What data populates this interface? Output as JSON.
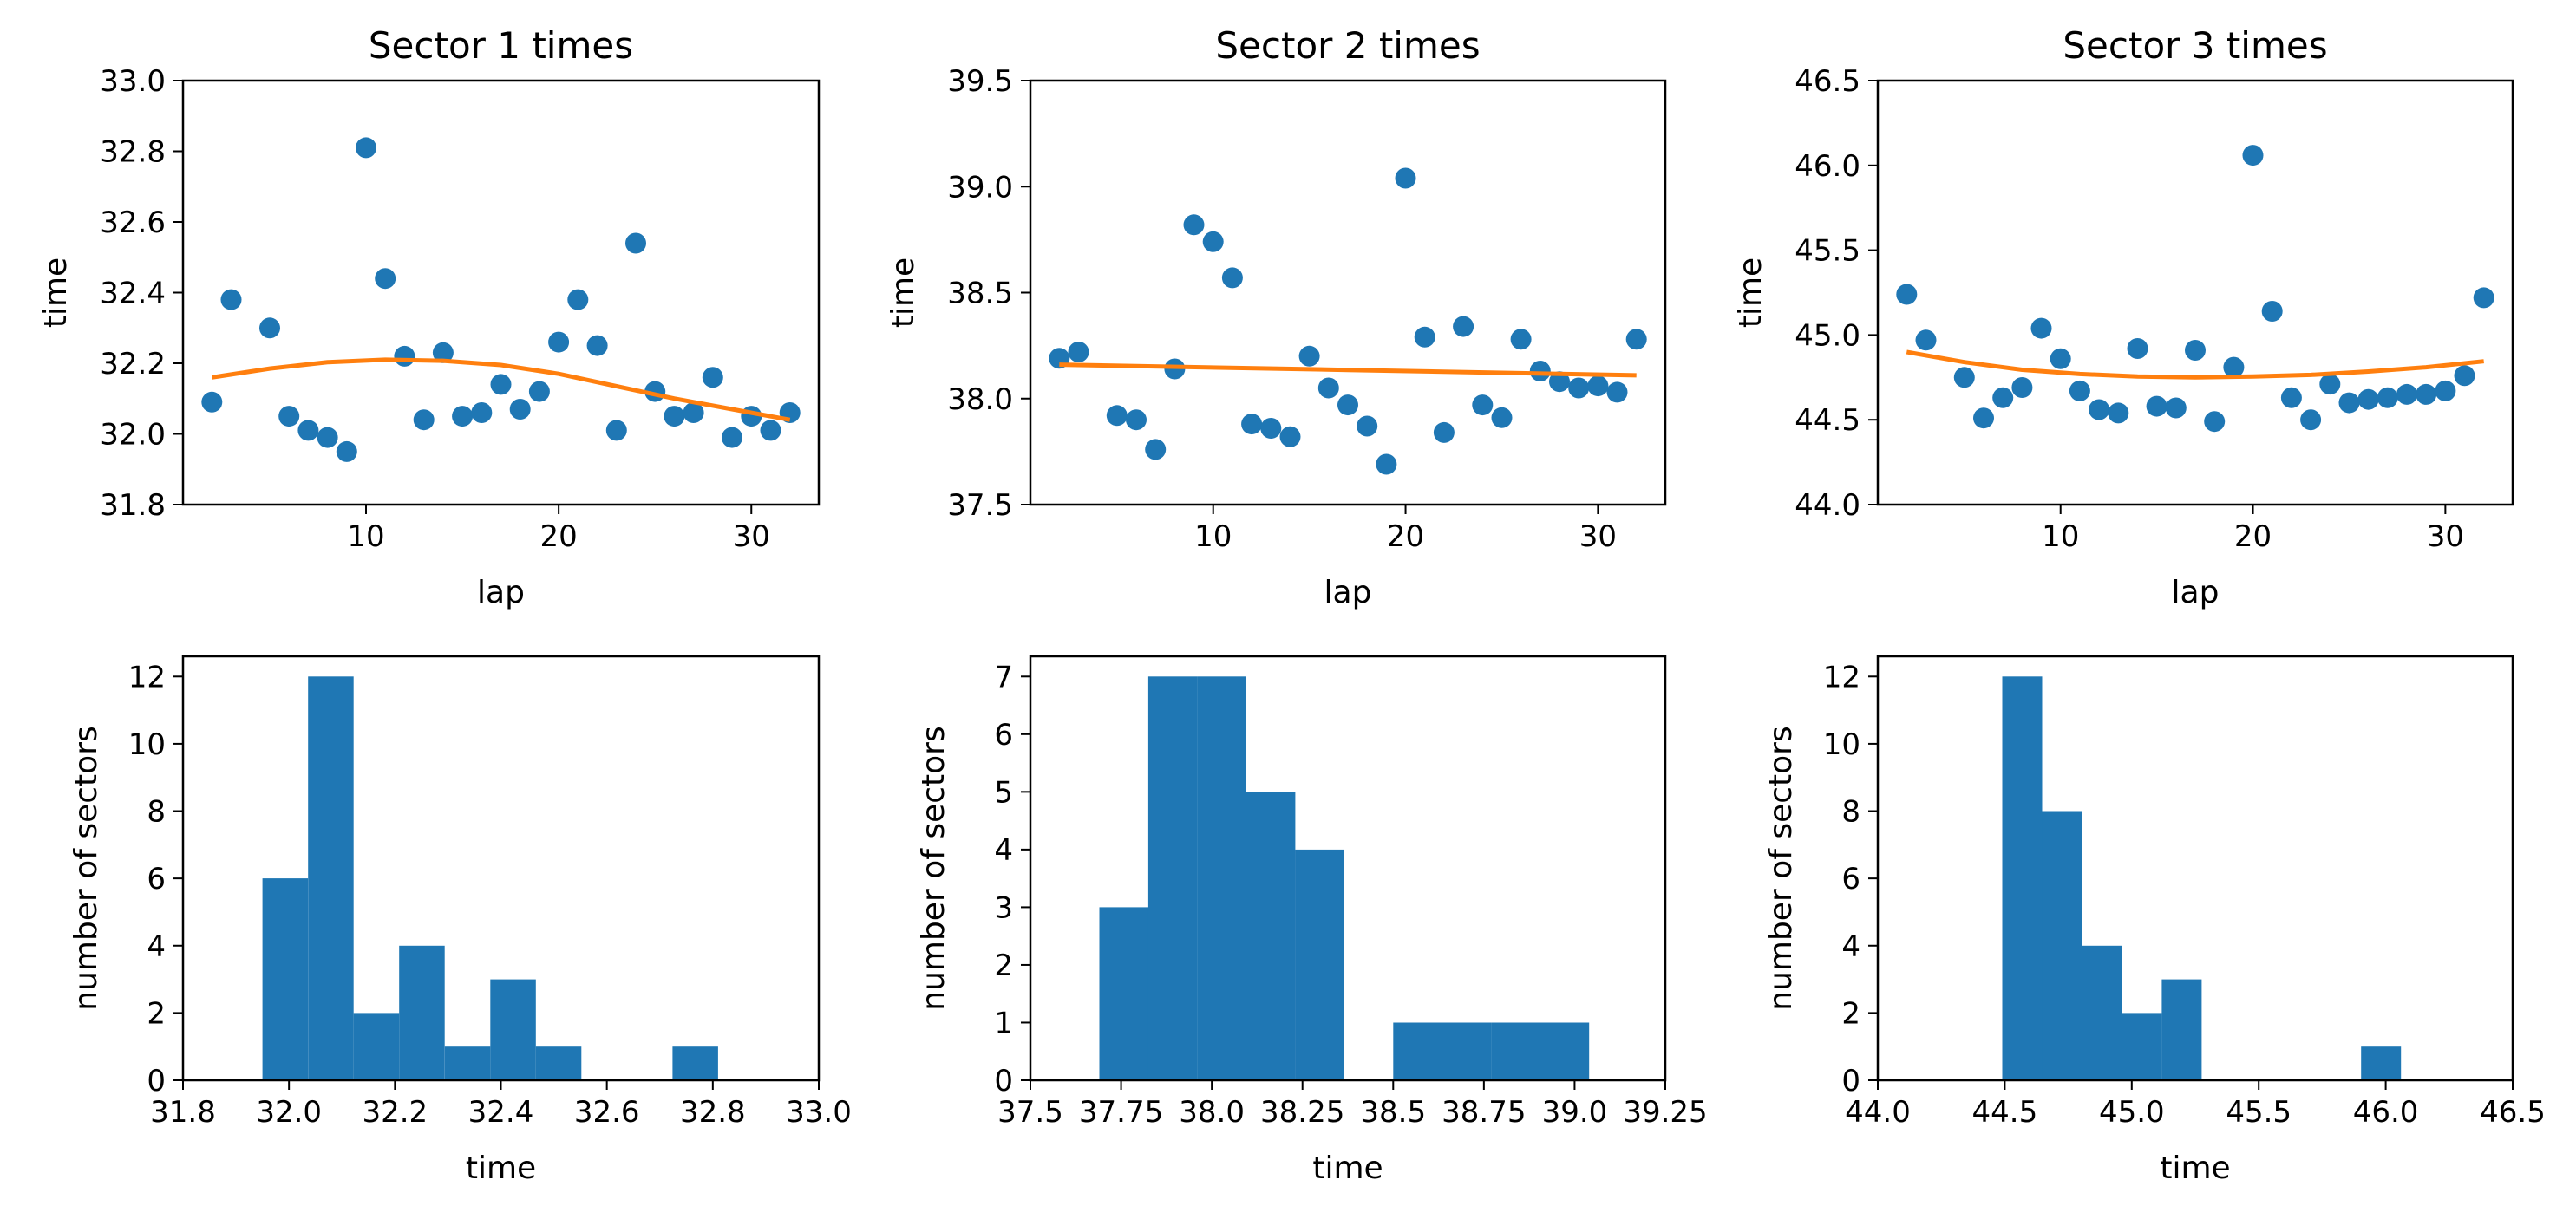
{
  "colors": {
    "scatter": "#1f77b4",
    "fit": "#ff7f0e",
    "bars": "#1f77b4"
  },
  "chart_data": [
    {
      "type": "scatter",
      "title": "Sector 1 times",
      "xlabel": "lap",
      "ylabel": "time",
      "xlim": [
        0.5,
        33.5
      ],
      "ylim": [
        31.8,
        33.0
      ],
      "xticks": [
        10,
        20,
        30
      ],
      "yticks": [
        "31.8",
        "32.0",
        "32.2",
        "32.4",
        "32.6",
        "32.8",
        "33.0"
      ],
      "points": [
        [
          2,
          32.09
        ],
        [
          3,
          32.38
        ],
        [
          5,
          32.3
        ],
        [
          6,
          32.05
        ],
        [
          7,
          32.01
        ],
        [
          8,
          31.99
        ],
        [
          9,
          31.95
        ],
        [
          10,
          32.81
        ],
        [
          11,
          32.44
        ],
        [
          12,
          32.22
        ],
        [
          13,
          32.04
        ],
        [
          14,
          32.23
        ],
        [
          15,
          32.05
        ],
        [
          16,
          32.06
        ],
        [
          17,
          32.14
        ],
        [
          18,
          32.07
        ],
        [
          19,
          32.12
        ],
        [
          20,
          32.26
        ],
        [
          21,
          32.38
        ],
        [
          22,
          32.25
        ],
        [
          23,
          32.01
        ],
        [
          24,
          32.54
        ],
        [
          25,
          32.12
        ],
        [
          26,
          32.05
        ],
        [
          27,
          32.06
        ],
        [
          28,
          32.16
        ],
        [
          29,
          31.99
        ],
        [
          30,
          32.05
        ],
        [
          31,
          32.01
        ],
        [
          32,
          32.06
        ]
      ],
      "fit": [
        [
          2,
          32.16
        ],
        [
          5,
          32.185
        ],
        [
          8,
          32.203
        ],
        [
          11,
          32.21
        ],
        [
          14,
          32.207
        ],
        [
          17,
          32.195
        ],
        [
          20,
          32.17
        ],
        [
          23,
          32.135
        ],
        [
          26,
          32.1
        ],
        [
          29,
          32.07
        ],
        [
          32,
          32.04
        ]
      ]
    },
    {
      "type": "scatter",
      "title": "Sector 2 times",
      "xlabel": "lap",
      "ylabel": "time",
      "xlim": [
        0.5,
        33.5
      ],
      "ylim": [
        37.5,
        39.5
      ],
      "xticks": [
        10,
        20,
        30
      ],
      "yticks": [
        "37.5",
        "38.0",
        "38.5",
        "39.0",
        "39.5"
      ],
      "points": [
        [
          2,
          38.19
        ],
        [
          3,
          38.22
        ],
        [
          5,
          37.92
        ],
        [
          6,
          37.9
        ],
        [
          7,
          37.76
        ],
        [
          8,
          38.14
        ],
        [
          9,
          38.82
        ],
        [
          10,
          38.74
        ],
        [
          11,
          38.57
        ],
        [
          12,
          37.88
        ],
        [
          13,
          37.86
        ],
        [
          14,
          37.82
        ],
        [
          15,
          38.2
        ],
        [
          16,
          38.05
        ],
        [
          17,
          37.97
        ],
        [
          18,
          37.87
        ],
        [
          19,
          37.69
        ],
        [
          20,
          39.04
        ],
        [
          21,
          38.29
        ],
        [
          22,
          37.84
        ],
        [
          23,
          38.34
        ],
        [
          24,
          37.97
        ],
        [
          25,
          37.91
        ],
        [
          26,
          38.28
        ],
        [
          27,
          38.13
        ],
        [
          28,
          38.08
        ],
        [
          29,
          38.05
        ],
        [
          30,
          38.06
        ],
        [
          31,
          38.03
        ],
        [
          32,
          38.28
        ]
      ],
      "fit": [
        [
          2,
          38.16
        ],
        [
          17,
          38.135
        ],
        [
          32,
          38.11
        ]
      ]
    },
    {
      "type": "scatter",
      "title": "Sector 3 times",
      "xlabel": "lap",
      "ylabel": "time",
      "xlim": [
        0.5,
        33.5
      ],
      "ylim": [
        44.0,
        46.5
      ],
      "xticks": [
        10,
        20,
        30
      ],
      "yticks": [
        "44.0",
        "44.5",
        "45.0",
        "45.5",
        "46.0",
        "46.5"
      ],
      "points": [
        [
          2,
          45.24
        ],
        [
          3,
          44.97
        ],
        [
          5,
          44.75
        ],
        [
          6,
          44.51
        ],
        [
          7,
          44.63
        ],
        [
          8,
          44.69
        ],
        [
          9,
          45.04
        ],
        [
          10,
          44.86
        ],
        [
          11,
          44.67
        ],
        [
          12,
          44.56
        ],
        [
          13,
          44.54
        ],
        [
          14,
          44.92
        ],
        [
          15,
          44.58
        ],
        [
          16,
          44.57
        ],
        [
          17,
          44.91
        ],
        [
          18,
          44.49
        ],
        [
          19,
          44.81
        ],
        [
          20,
          46.06
        ],
        [
          21,
          45.14
        ],
        [
          22,
          44.63
        ],
        [
          23,
          44.5
        ],
        [
          24,
          44.71
        ],
        [
          25,
          44.6
        ],
        [
          26,
          44.62
        ],
        [
          27,
          44.63
        ],
        [
          28,
          44.65
        ],
        [
          29,
          44.65
        ],
        [
          30,
          44.67
        ],
        [
          31,
          44.76
        ],
        [
          32,
          45.22
        ]
      ],
      "fit": [
        [
          2,
          44.9
        ],
        [
          5,
          44.84
        ],
        [
          8,
          44.795
        ],
        [
          11,
          44.77
        ],
        [
          14,
          44.755
        ],
        [
          17,
          44.75
        ],
        [
          20,
          44.755
        ],
        [
          23,
          44.765
        ],
        [
          26,
          44.785
        ],
        [
          29,
          44.81
        ],
        [
          32,
          44.845
        ]
      ]
    },
    {
      "type": "bar",
      "xlabel": "time",
      "ylabel": "number of sectors",
      "xlim": [
        31.8,
        33.0
      ],
      "ylim": [
        0,
        12.6
      ],
      "xticks": [
        "31.8",
        "32.0",
        "32.2",
        "32.4",
        "32.6",
        "32.8",
        "33.0"
      ],
      "yticks": [
        "0",
        "2",
        "4",
        "6",
        "8",
        "10",
        "12"
      ],
      "bin_edges": [
        31.95,
        32.036,
        32.122,
        32.208,
        32.294,
        32.38,
        32.466,
        32.552,
        32.638,
        32.724,
        32.81
      ],
      "counts": [
        6,
        12,
        2,
        4,
        1,
        3,
        1,
        0,
        0,
        1
      ]
    },
    {
      "type": "bar",
      "xlabel": "time",
      "ylabel": "number of sectors",
      "xlim": [
        37.5,
        39.25
      ],
      "ylim": [
        0,
        7.35
      ],
      "xticks": [
        "37.5",
        "37.75",
        "38.0",
        "38.25",
        "38.5",
        "38.75",
        "39.0",
        "39.25"
      ],
      "yticks": [
        "0",
        "1",
        "2",
        "3",
        "4",
        "5",
        "6",
        "7"
      ],
      "bin_edges": [
        37.69,
        37.825,
        37.96,
        38.095,
        38.23,
        38.365,
        38.5,
        38.635,
        38.77,
        38.905,
        39.04
      ],
      "counts": [
        3,
        7,
        7,
        5,
        4,
        0,
        1,
        1,
        1,
        1
      ]
    },
    {
      "type": "bar",
      "xlabel": "time",
      "ylabel": "number of sectors",
      "xlim": [
        44.0,
        46.5
      ],
      "ylim": [
        0,
        12.6
      ],
      "xticks": [
        "44.0",
        "44.5",
        "45.0",
        "45.5",
        "46.0",
        "46.5"
      ],
      "yticks": [
        "0",
        "2",
        "4",
        "6",
        "8",
        "10",
        "12"
      ],
      "bin_edges": [
        44.49,
        44.647,
        44.804,
        44.961,
        45.118,
        45.275,
        45.432,
        45.589,
        45.746,
        45.903,
        46.06
      ],
      "counts": [
        12,
        8,
        4,
        2,
        3,
        0,
        0,
        0,
        0,
        1
      ]
    }
  ]
}
